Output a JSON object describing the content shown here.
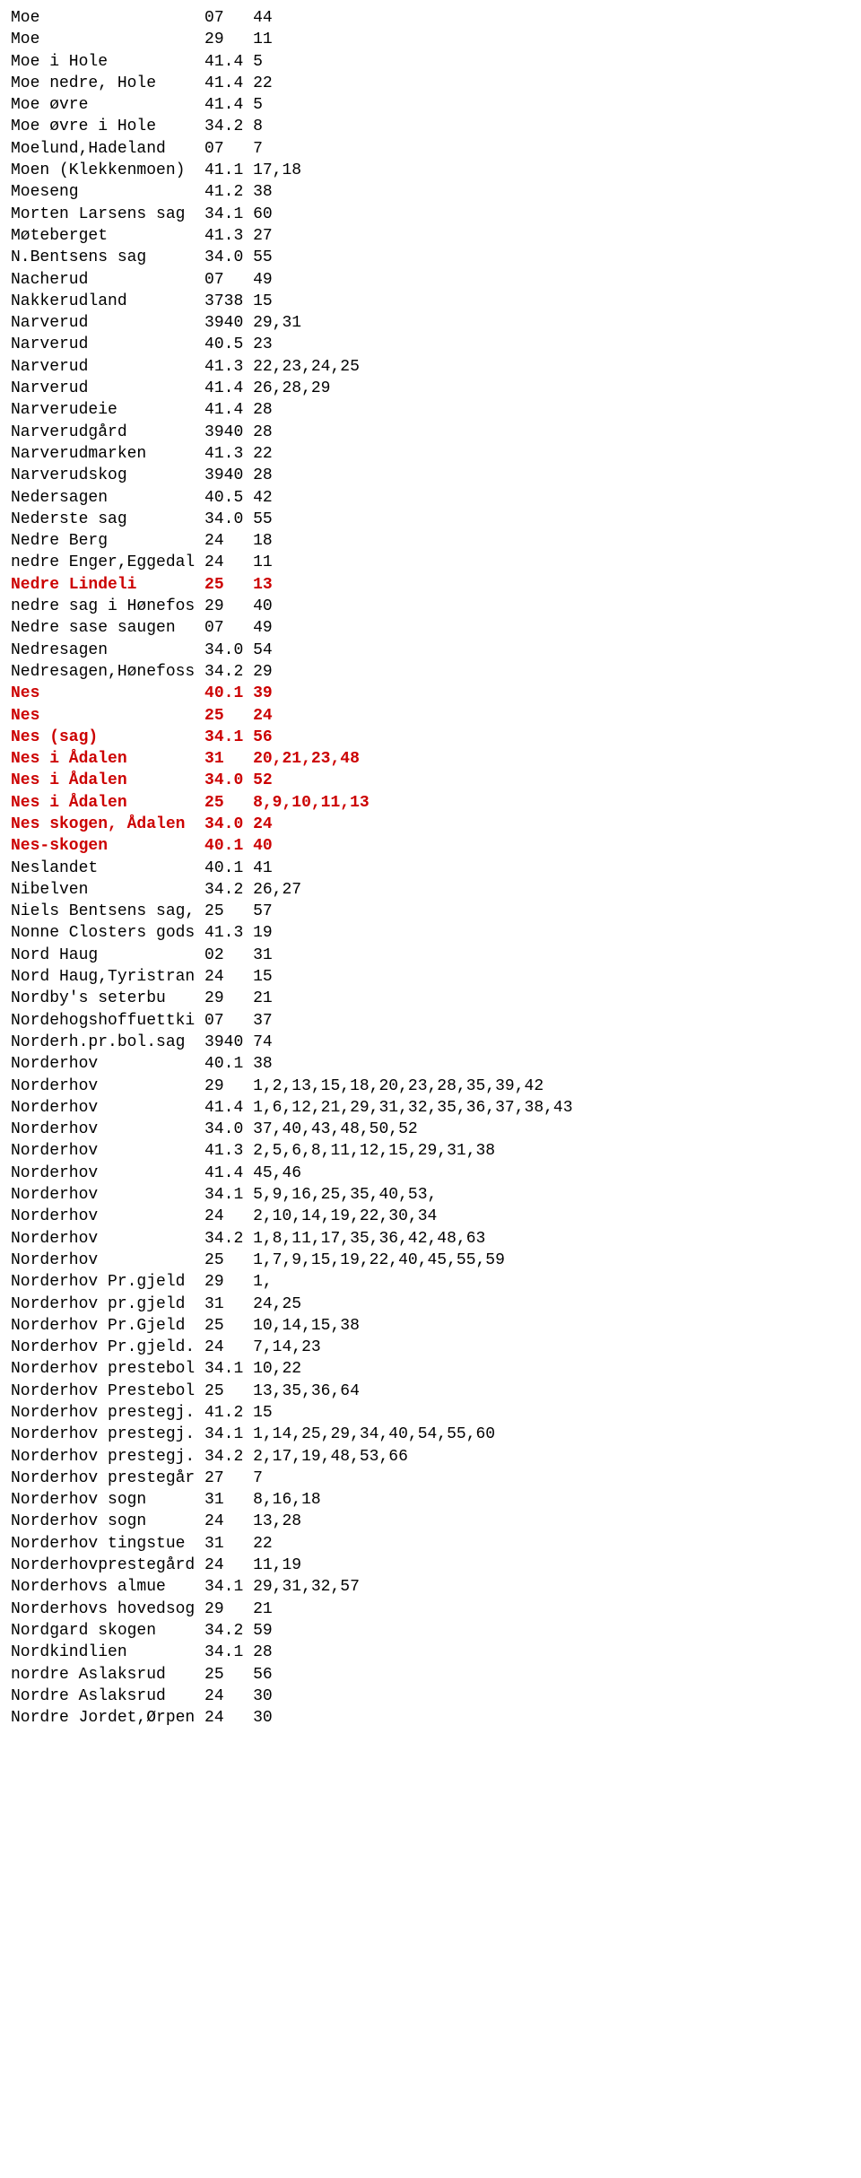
{
  "columns": {
    "nameWidth": 20,
    "col2Width": 5
  },
  "style": {
    "highlightColor": "#cc0000",
    "textColor": "#000000",
    "background": "#ffffff",
    "fontFamily": "Courier New",
    "fontSizePt": 14
  },
  "rows": [
    {
      "name": "Moe",
      "c2": "07",
      "c3": "44",
      "hl": false
    },
    {
      "name": "Moe",
      "c2": "29",
      "c3": "11",
      "hl": false
    },
    {
      "name": "Moe i Hole",
      "c2": "41.4",
      "c3": "5",
      "hl": false
    },
    {
      "name": "Moe nedre, Hole",
      "c2": "41.4",
      "c3": "22",
      "hl": false
    },
    {
      "name": "Moe øvre",
      "c2": "41.4",
      "c3": "5",
      "hl": false
    },
    {
      "name": "Moe øvre i Hole",
      "c2": "34.2",
      "c3": "8",
      "hl": false
    },
    {
      "name": "Moelund,Hadeland",
      "c2": "07",
      "c3": "7",
      "hl": false
    },
    {
      "name": "Moen (Klekkenmoen)",
      "c2": "41.1",
      "c3": "17,18",
      "hl": false
    },
    {
      "name": "Moeseng",
      "c2": "41.2",
      "c3": "38",
      "hl": false
    },
    {
      "name": "Morten Larsens sag",
      "c2": "34.1",
      "c3": "60",
      "hl": false
    },
    {
      "name": "Møteberget",
      "c2": "41.3",
      "c3": "27",
      "hl": false
    },
    {
      "name": "N.Bentsens sag",
      "c2": "34.0",
      "c3": "55",
      "hl": false
    },
    {
      "name": "Nacherud",
      "c2": "07",
      "c3": "49",
      "hl": false
    },
    {
      "name": "Nakkerudland",
      "c2": "3738",
      "c3": "15",
      "hl": false
    },
    {
      "name": "Narverud",
      "c2": "3940",
      "c3": "29,31",
      "hl": false
    },
    {
      "name": "Narverud",
      "c2": "40.5",
      "c3": "23",
      "hl": false
    },
    {
      "name": "Narverud",
      "c2": "41.3",
      "c3": "22,23,24,25",
      "hl": false
    },
    {
      "name": "Narverud",
      "c2": "41.4",
      "c3": "26,28,29",
      "hl": false
    },
    {
      "name": "Narverudeie",
      "c2": "41.4",
      "c3": "28",
      "hl": false
    },
    {
      "name": "Narverudgård",
      "c2": "3940",
      "c3": "28",
      "hl": false
    },
    {
      "name": "Narverudmarken",
      "c2": "41.3",
      "c3": "22",
      "hl": false
    },
    {
      "name": "Narverudskog",
      "c2": "3940",
      "c3": "28",
      "hl": false
    },
    {
      "name": "Nedersagen",
      "c2": "40.5",
      "c3": "42",
      "hl": false
    },
    {
      "name": "Nederste sag",
      "c2": "34.0",
      "c3": "55",
      "hl": false
    },
    {
      "name": "Nedre Berg",
      "c2": "24",
      "c3": "18",
      "hl": false
    },
    {
      "name": "nedre Enger,Eggedal",
      "c2": "24",
      "c3": "11",
      "hl": false
    },
    {
      "name": "Nedre Lindeli",
      "c2": "25",
      "c3": "13",
      "hl": true
    },
    {
      "name": "nedre sag i Hønefos",
      "c2": "29",
      "c3": "40",
      "hl": false
    },
    {
      "name": "Nedre sase saugen",
      "c2": "07",
      "c3": "49",
      "hl": false
    },
    {
      "name": "Nedresagen",
      "c2": "34.0",
      "c3": "54",
      "hl": false
    },
    {
      "name": "Nedresagen,Hønefoss",
      "c2": "34.2",
      "c3": "29",
      "hl": false
    },
    {
      "name": "Nes",
      "c2": "40.1",
      "c3": "39",
      "hl": true
    },
    {
      "name": "Nes",
      "c2": "25",
      "c3": "24",
      "hl": true
    },
    {
      "name": "Nes (sag)",
      "c2": "34.1",
      "c3": "56",
      "hl": true
    },
    {
      "name": "Nes i Ådalen",
      "c2": "31",
      "c3": "20,21,23,48",
      "hl": true
    },
    {
      "name": "Nes i Ådalen",
      "c2": "34.0",
      "c3": "52",
      "hl": true
    },
    {
      "name": "Nes i Ådalen",
      "c2": "25",
      "c3": "8,9,10,11,13",
      "hl": true
    },
    {
      "name": "Nes skogen, Ådalen",
      "c2": "34.0",
      "c3": "24",
      "hl": true
    },
    {
      "name": "Nes-skogen",
      "c2": "40.1",
      "c3": "40",
      "hl": true
    },
    {
      "name": "Neslandet",
      "c2": "40.1",
      "c3": "41",
      "hl": false
    },
    {
      "name": "Nibelven",
      "c2": "34.2",
      "c3": "26,27",
      "hl": false
    },
    {
      "name": "Niels Bentsens sag,",
      "c2": "25",
      "c3": "57",
      "hl": false
    },
    {
      "name": "Nonne Closters gods",
      "c2": "41.3",
      "c3": "19",
      "hl": false
    },
    {
      "name": "Nord Haug",
      "c2": "02",
      "c3": "31",
      "hl": false
    },
    {
      "name": "Nord Haug,Tyristran",
      "c2": "24",
      "c3": "15",
      "hl": false
    },
    {
      "name": "Nordby's seterbu",
      "c2": "29",
      "c3": "21",
      "hl": false
    },
    {
      "name": "Nordehogshoffuettki",
      "c2": "07",
      "c3": "37",
      "hl": false
    },
    {
      "name": "Norderh.pr.bol.sag",
      "c2": "3940",
      "c3": "74",
      "hl": false
    },
    {
      "name": "Norderhov",
      "c2": "40.1",
      "c3": "38",
      "hl": false
    },
    {
      "name": "Norderhov",
      "c2": "29",
      "c3": "1,2,13,15,18,20,23,28,35,39,42",
      "hl": false
    },
    {
      "name": "Norderhov",
      "c2": "41.4",
      "c3": "1,6,12,21,29,31,32,35,36,37,38,43",
      "hl": false
    },
    {
      "name": "Norderhov",
      "c2": "34.0",
      "c3": "37,40,43,48,50,52",
      "hl": false
    },
    {
      "name": "Norderhov",
      "c2": "41.3",
      "c3": "2,5,6,8,11,12,15,29,31,38",
      "hl": false
    },
    {
      "name": "Norderhov",
      "c2": "41.4",
      "c3": "45,46",
      "hl": false
    },
    {
      "name": "Norderhov",
      "c2": "34.1",
      "c3": "5,9,16,25,35,40,53,",
      "hl": false
    },
    {
      "name": "Norderhov",
      "c2": "24",
      "c3": "2,10,14,19,22,30,34",
      "hl": false
    },
    {
      "name": "Norderhov",
      "c2": "34.2",
      "c3": "1,8,11,17,35,36,42,48,63",
      "hl": false
    },
    {
      "name": "Norderhov",
      "c2": "25",
      "c3": "1,7,9,15,19,22,40,45,55,59",
      "hl": false
    },
    {
      "name": "Norderhov Pr.gjeld",
      "c2": "29",
      "c3": "1,",
      "hl": false
    },
    {
      "name": "Norderhov pr.gjeld",
      "c2": "31",
      "c3": "24,25",
      "hl": false
    },
    {
      "name": "Norderhov Pr.Gjeld",
      "c2": "25",
      "c3": "10,14,15,38",
      "hl": false
    },
    {
      "name": "Norderhov Pr.gjeld.",
      "c2": "24",
      "c3": "7,14,23",
      "hl": false
    },
    {
      "name": "Norderhov prestebol",
      "c2": "34.1",
      "c3": "10,22",
      "hl": false
    },
    {
      "name": "Norderhov Prestebol",
      "c2": "25",
      "c3": "13,35,36,64",
      "hl": false
    },
    {
      "name": "Norderhov prestegj.",
      "c2": "41.2",
      "c3": "15",
      "hl": false
    },
    {
      "name": "Norderhov prestegj.",
      "c2": "34.1",
      "c3": "1,14,25,29,34,40,54,55,60",
      "hl": false
    },
    {
      "name": "Norderhov prestegj.",
      "c2": "34.2",
      "c3": "2,17,19,48,53,66",
      "hl": false
    },
    {
      "name": "Norderhov prestegår",
      "c2": "27",
      "c3": "7",
      "hl": false
    },
    {
      "name": "Norderhov sogn",
      "c2": "31",
      "c3": "8,16,18",
      "hl": false
    },
    {
      "name": "Norderhov sogn",
      "c2": "24",
      "c3": "13,28",
      "hl": false
    },
    {
      "name": "Norderhov tingstue",
      "c2": "31",
      "c3": "22",
      "hl": false
    },
    {
      "name": "Norderhovprestegård",
      "c2": "24",
      "c3": "11,19",
      "hl": false
    },
    {
      "name": "Norderhovs almue",
      "c2": "34.1",
      "c3": "29,31,32,57",
      "hl": false
    },
    {
      "name": "Norderhovs hovedsog",
      "c2": "29",
      "c3": "21",
      "hl": false
    },
    {
      "name": "Nordgard skogen",
      "c2": "34.2",
      "c3": "59",
      "hl": false
    },
    {
      "name": "Nordkindlien",
      "c2": "34.1",
      "c3": "28",
      "hl": false
    },
    {
      "name": "nordre Aslaksrud",
      "c2": "25",
      "c3": "56",
      "hl": false
    },
    {
      "name": "Nordre Aslaksrud",
      "c2": "24",
      "c3": "30",
      "hl": false
    },
    {
      "name": "Nordre Jordet,Ørpen",
      "c2": "24",
      "c3": "30",
      "hl": false
    }
  ]
}
